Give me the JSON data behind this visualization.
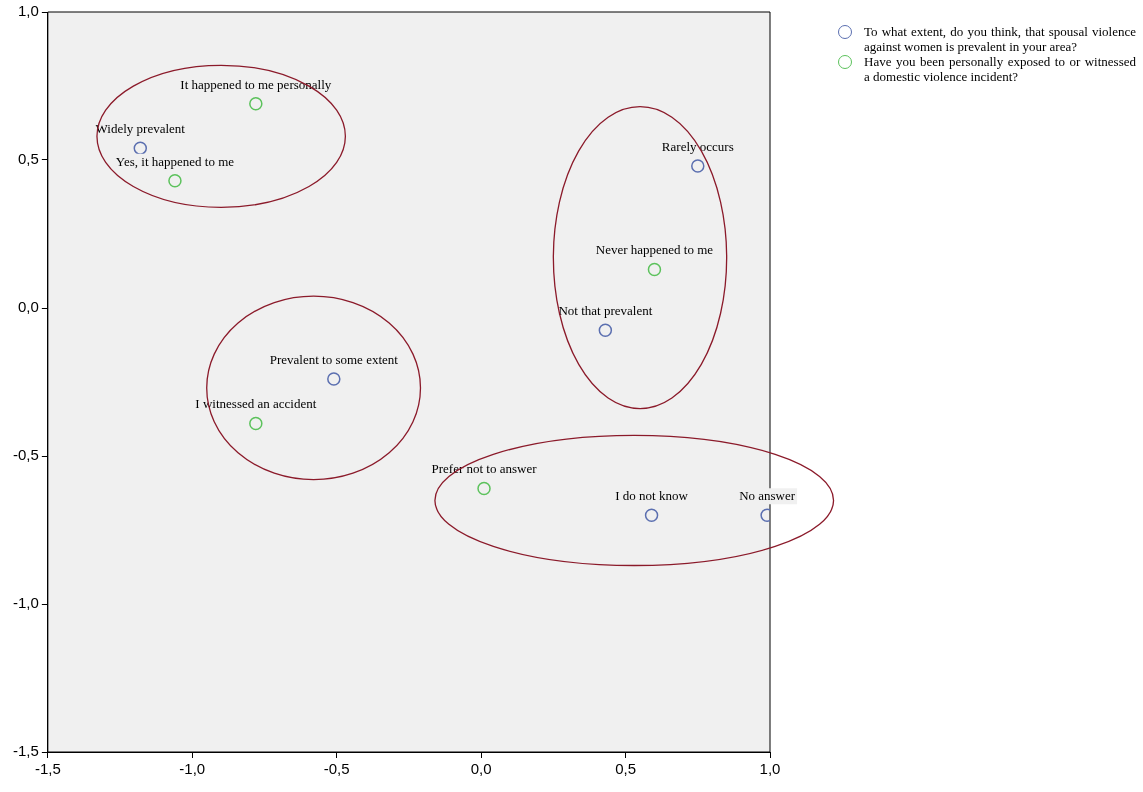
{
  "chart_data": {
    "type": "scatter",
    "marker": "circle",
    "grid": false,
    "legend": "top right",
    "xlim": [
      -1.5,
      1.0
    ],
    "ylim": [
      -1.5,
      1.0
    ],
    "xticks": [
      {
        "value": -1.5,
        "label": "-1,5"
      },
      {
        "value": -1.0,
        "label": "-1,0"
      },
      {
        "value": -0.5,
        "label": "-0,5"
      },
      {
        "value": 0.0,
        "label": "0,0"
      },
      {
        "value": 0.5,
        "label": "0,5"
      },
      {
        "value": 1.0,
        "label": "1,0"
      }
    ],
    "yticks": [
      {
        "value": -1.5,
        "label": "-1,5"
      },
      {
        "value": -1.0,
        "label": "-1,0"
      },
      {
        "value": -0.5,
        "label": "-0,5"
      },
      {
        "value": 0.0,
        "label": "0,0"
      },
      {
        "value": 0.5,
        "label": "0,5"
      },
      {
        "value": 1.0,
        "label": "1,0"
      }
    ],
    "series": [
      {
        "name": "To what extent, do you think, that spousal violence against women is prevalent in your area?",
        "color": "#5b6fb0",
        "x": [
          -1.18,
          0.75,
          0.43,
          -0.51,
          0.59,
          0.99
        ],
        "values": [
          0.54,
          0.48,
          -0.075,
          -0.24,
          -0.7,
          -0.7
        ]
      },
      {
        "name": "Have you been personally exposed to or witnessed a domestic violence incident?",
        "color": "#5cc25c",
        "x": [
          -0.78,
          -1.06,
          0.6,
          -0.78,
          0.01
        ],
        "values": [
          0.69,
          0.43,
          0.13,
          -0.39,
          -0.61
        ]
      }
    ],
    "annotations": [
      {
        "text": "Widely prevalent",
        "x": -1.18,
        "y": 0.54
      },
      {
        "text": "Rarely occurs",
        "x": 0.75,
        "y": 0.48
      },
      {
        "text": "Not that prevalent",
        "x": 0.43,
        "y": -0.075
      },
      {
        "text": "Prevalent to some extent",
        "x": -0.51,
        "y": -0.24
      },
      {
        "text": "I do not know",
        "x": 0.59,
        "y": -0.7
      },
      {
        "text": "No answer",
        "x": 0.99,
        "y": -0.7
      },
      {
        "text": "It happened to me personally",
        "x": -0.78,
        "y": 0.69
      },
      {
        "text": "Yes, it happened to me",
        "x": -1.06,
        "y": 0.43
      },
      {
        "text": "Never happened to me",
        "x": 0.6,
        "y": 0.13
      },
      {
        "text": "I witnessed an accident",
        "x": -0.78,
        "y": -0.39
      },
      {
        "text": "Prefer not to answer",
        "x": 0.01,
        "y": -0.61
      }
    ]
  }
}
